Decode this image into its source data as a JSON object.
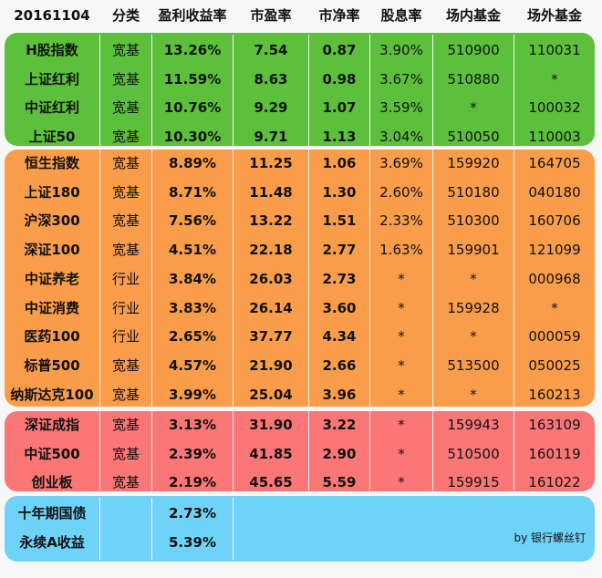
{
  "header": {
    "date": "20161104",
    "category": "分类",
    "earnings_yield": "盈利收益率",
    "pe": "市盈率",
    "pb": "市净率",
    "dividend_yield": "股息率",
    "exchange_fund": "场内基金",
    "otc_fund": "场外基金"
  },
  "groups": {
    "green": [
      {
        "name": "H股指数",
        "category": "宽基",
        "ey": "13.26%",
        "pe": "7.54",
        "pb": "0.87",
        "dy": "3.90%",
        "exchange": "510900",
        "otc": "110031"
      },
      {
        "name": "上证红利",
        "category": "宽基",
        "ey": "11.59%",
        "pe": "8.63",
        "pb": "0.98",
        "dy": "3.67%",
        "exchange": "510880",
        "otc": "*"
      },
      {
        "name": "中证红利",
        "category": "宽基",
        "ey": "10.76%",
        "pe": "9.29",
        "pb": "1.07",
        "dy": "3.59%",
        "exchange": "*",
        "otc": "100032"
      },
      {
        "name": "上证50",
        "category": "宽基",
        "ey": "10.30%",
        "pe": "9.71",
        "pb": "1.13",
        "dy": "3.04%",
        "exchange": "510050",
        "otc": "110003"
      }
    ],
    "orange": [
      {
        "name": "恒生指数",
        "category": "宽基",
        "ey": "8.89%",
        "pe": "11.25",
        "pb": "1.06",
        "dy": "3.69%",
        "exchange": "159920",
        "otc": "164705"
      },
      {
        "name": "上证180",
        "category": "宽基",
        "ey": "8.71%",
        "pe": "11.48",
        "pb": "1.30",
        "dy": "2.60%",
        "exchange": "510180",
        "otc": "040180"
      },
      {
        "name": "沪深300",
        "category": "宽基",
        "ey": "7.56%",
        "pe": "13.22",
        "pb": "1.51",
        "dy": "2.33%",
        "exchange": "510300",
        "otc": "160706"
      },
      {
        "name": "深证100",
        "category": "宽基",
        "ey": "4.51%",
        "pe": "22.18",
        "pb": "2.77",
        "dy": "1.63%",
        "exchange": "159901",
        "otc": "121099"
      },
      {
        "name": "中证养老",
        "category": "行业",
        "ey": "3.84%",
        "pe": "26.03",
        "pb": "2.73",
        "dy": "*",
        "exchange": "*",
        "otc": "000968"
      },
      {
        "name": "中证消费",
        "category": "行业",
        "ey": "3.83%",
        "pe": "26.14",
        "pb": "3.60",
        "dy": "*",
        "exchange": "159928",
        "otc": "*"
      },
      {
        "name": "医药100",
        "category": "行业",
        "ey": "2.65%",
        "pe": "37.77",
        "pb": "4.34",
        "dy": "*",
        "exchange": "*",
        "otc": "000059"
      },
      {
        "name": "标普500",
        "category": "宽基",
        "ey": "4.57%",
        "pe": "21.90",
        "pb": "2.66",
        "dy": "*",
        "exchange": "513500",
        "otc": "050025"
      },
      {
        "name": "纳斯达克100",
        "category": "宽基",
        "ey": "3.99%",
        "pe": "25.04",
        "pb": "3.96",
        "dy": "*",
        "exchange": "*",
        "otc": "160213"
      }
    ],
    "red": [
      {
        "name": "深证成指",
        "category": "宽基",
        "ey": "3.13%",
        "pe": "31.90",
        "pb": "3.22",
        "dy": "*",
        "exchange": "159943",
        "otc": "163109"
      },
      {
        "name": "中证500",
        "category": "宽基",
        "ey": "2.39%",
        "pe": "41.85",
        "pb": "2.90",
        "dy": "*",
        "exchange": "510500",
        "otc": "160119"
      },
      {
        "name": "创业板",
        "category": "宽基",
        "ey": "2.19%",
        "pe": "45.65",
        "pb": "5.59",
        "dy": "*",
        "exchange": "159915",
        "otc": "161022"
      }
    ],
    "blue": [
      {
        "name": "十年期国债",
        "ey": "2.73%"
      },
      {
        "name": "永续A收益",
        "ey": "5.39%"
      }
    ]
  },
  "credit": "by 银行螺丝钉",
  "colors": {
    "green": "#5cc03c",
    "orange": "#fa9d4a",
    "red": "#fb7676",
    "blue": "#6fd3f7"
  }
}
